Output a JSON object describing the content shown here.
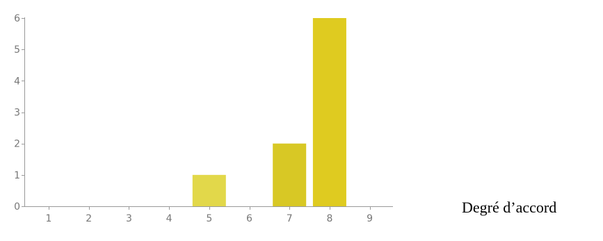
{
  "chart_data": {
    "type": "bar",
    "title": "",
    "xlabel": "Degré d’accord",
    "ylabel": "",
    "x_ticks": [
      "1",
      "2",
      "3",
      "4",
      "5",
      "6",
      "7",
      "8",
      "9"
    ],
    "y_ticks": [
      "0",
      "1",
      "2",
      "3",
      "4",
      "5",
      "6"
    ],
    "ylim": [
      0,
      6
    ],
    "grid": false,
    "bars": [
      {
        "x": "5",
        "value": 1,
        "color": "#e2d84a"
      },
      {
        "x": "7",
        "value": 2,
        "color": "#d8c825"
      },
      {
        "x": "8",
        "value": 6,
        "color": "#dfcb20"
      }
    ]
  }
}
